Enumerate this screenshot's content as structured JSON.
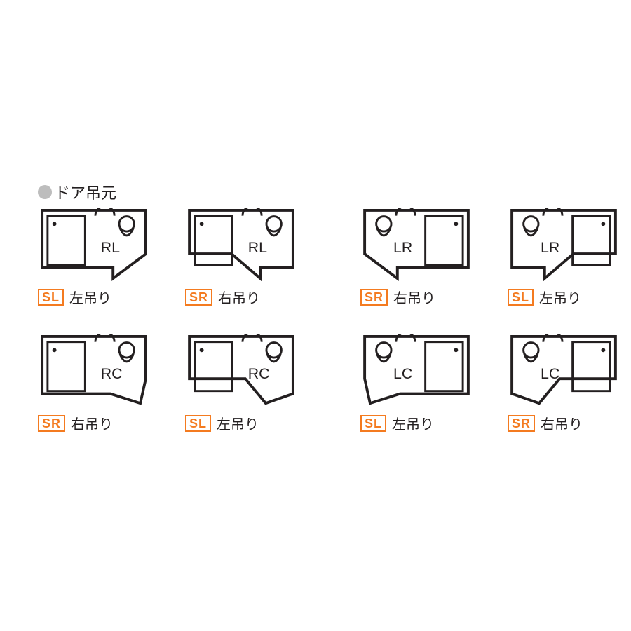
{
  "title": "ドア吊元",
  "bullet_color": "#bdbdbd",
  "badge_border_color": "#f47b20",
  "badge_text_color": "#f47b20",
  "text_color": "#231f20",
  "stroke_color": "#231f20",
  "background_color": "#ffffff",
  "title_fontsize": 22,
  "caption_fontsize": 20,
  "badge_fontsize": 18,
  "label_fontsize": 22,
  "plans": [
    {
      "layout": "R",
      "door": "L",
      "plan_label": "RL",
      "badge": "SL",
      "hinge": "左吊り"
    },
    {
      "layout": "R",
      "door": "R",
      "plan_label": "RL",
      "badge": "SR",
      "hinge": "右吊り"
    },
    {
      "layout": "L",
      "door": "R",
      "plan_label": "LR",
      "badge": "SR",
      "hinge": "右吊り"
    },
    {
      "layout": "L",
      "door": "L",
      "plan_label": "LR",
      "badge": "SL",
      "hinge": "左吊り"
    },
    {
      "layout": "R",
      "door": "CR",
      "plan_label": "RC",
      "badge": "SR",
      "hinge": "右吊り"
    },
    {
      "layout": "R",
      "door": "CL",
      "plan_label": "RC",
      "badge": "SL",
      "hinge": "左吊り"
    },
    {
      "layout": "L",
      "door": "CL",
      "plan_label": "LC",
      "badge": "SL",
      "hinge": "左吊り"
    },
    {
      "layout": "L",
      "door": "CR",
      "plan_label": "LC",
      "badge": "SR",
      "hinge": "右吊り"
    }
  ]
}
